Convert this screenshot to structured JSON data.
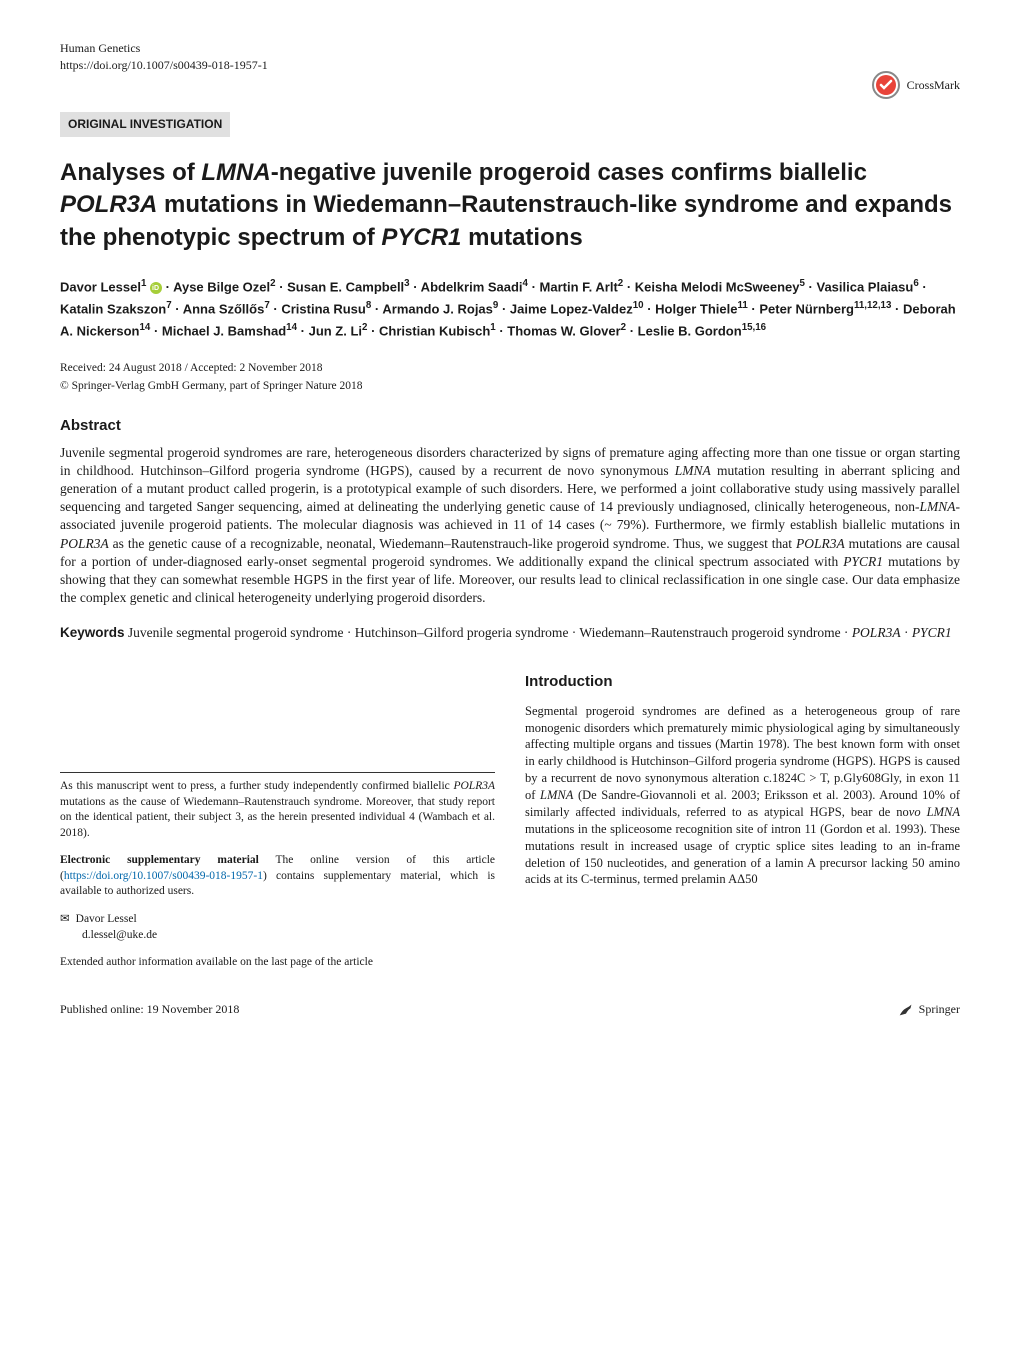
{
  "journal": "Human Genetics",
  "doi_line": "https://doi.org/10.1007/s00439-018-1957-1",
  "category": "ORIGINAL INVESTIGATION",
  "crossmark_text": "CrossMark",
  "title": "Analyses of LMNA-negative juvenile progeroid cases confirms biallelic POLR3A mutations in Wiedemann–Rautenstrauch-like syndrome and expands the phenotypic spectrum of PYCR1 mutations",
  "authors_html": "Davor Lessel<sup>1</sup> <span class='orcid-icon' data-name='orcid-icon' data-interactable='false'></span> · Ayse Bilge Ozel<sup>2</sup> · Susan E. Campbell<sup>3</sup> · Abdelkrim Saadi<sup>4</sup> · Martin F. Arlt<sup>2</sup> · Keisha Melodi McSweeney<sup>5</sup> · Vasilica Plaiasu<sup>6</sup> · Katalin Szakszon<sup>7</sup> · Anna Szőllős<sup>7</sup> · Cristina Rusu<sup>8</sup> · Armando J. Rojas<sup>9</sup> · Jaime Lopez-Valdez<sup>10</sup> · Holger Thiele<sup>11</sup> · Peter Nürnberg<sup>11,12,13</sup> · Deborah A. Nickerson<sup>14</sup> · Michael J. Bamshad<sup>14</sup> · Jun Z. Li<sup>2</sup> · Christian Kubisch<sup>1</sup> · Thomas W. Glover<sup>2</sup> · Leslie B. Gordon<sup>15,16</sup>",
  "dates": "Received: 24 August 2018 / Accepted: 2 November 2018",
  "copyright": "© Springer-Verlag GmbH Germany, part of Springer Nature 2018",
  "abstract_heading": "Abstract",
  "abstract_text": "Juvenile segmental progeroid syndromes are rare, heterogeneous disorders characterized by signs of premature aging affecting more than one tissue or organ starting in childhood. Hutchinson–Gilford progeria syndrome (HGPS), caused by a recurrent de novo synonymous LMNA mutation resulting in aberrant splicing and generation of a mutant product called progerin, is a prototypical example of such disorders. Here, we performed a joint collaborative study using massively parallel sequencing and targeted Sanger sequencing, aimed at delineating the underlying genetic cause of 14 previously undiagnosed, clinically heterogeneous, non-LMNA-associated juvenile progeroid patients. The molecular diagnosis was achieved in 11 of 14 cases (~ 79%). Furthermore, we firmly establish biallelic mutations in POLR3A as the genetic cause of a recognizable, neonatal, Wiedemann–Rautenstrauch-like progeroid syndrome. Thus, we suggest that POLR3A mutations are causal for a portion of under-diagnosed early-onset segmental progeroid syndromes. We additionally expand the clinical spectrum associated with PYCR1 mutations by showing that they can somewhat resemble HGPS in the first year of life. Moreover, our results lead to clinical reclassification in one single case. Our data emphasize the complex genetic and clinical heterogeneity underlying progeroid disorders.",
  "keywords_label": "Keywords",
  "keywords_text": " Juvenile segmental progeroid syndrome · Hutchinson–Gilford progeria syndrome · Wiedemann–Rautenstrauch progeroid syndrome · POLR3A · PYCR1",
  "intro_heading": "Introduction",
  "intro_text": "Segmental progeroid syndromes are defined as a heterogeneous group of rare monogenic disorders which prematurely mimic physiological aging by simultaneously affecting multiple organs and tissues (Martin 1978). The best known form with onset in early childhood is Hutchinson–Gilford progeria syndrome (HGPS). HGPS is caused by a recurrent de novo synonymous alteration c.1824C > T, p.Gly608Gly, in exon 11 of LMNA (De Sandre-Giovannoli et al. 2003; Eriksson et al. 2003). Around 10% of similarly affected individuals, referred to as atypical HGPS, bear de novo LMNA mutations in the spliceosome recognition site of intron 11 (Gordon et al. 1993). These mutations result in increased usage of cryptic splice sites leading to an in-frame deletion of 150 nucleotides, and generation of a lamin A precursor lacking 50 amino acids at its C-terminus, termed prelamin AΔ50",
  "press_note": "As this manuscript went to press, a further study independently confirmed biallelic POLR3A mutations as the cause of Wiedemann–Rautenstrauch syndrome. Moreover, that study report on the identical patient, their subject 3, as the herein presented individual 4 (Wambach et al. 2018).",
  "esm_label": "Electronic supplementary material",
  "esm_text": " The online version of this article (",
  "esm_link": "https://doi.org/10.1007/s00439-018-1957-1",
  "esm_text2": ") contains supplementary material, which is available to authorized users.",
  "corr_name": "Davor Lessel",
  "corr_email": "d.lessel@uke.de",
  "extended": "Extended author information available on the last page of the article",
  "pub_online": "Published online: 19 November 2018",
  "springer": "Springer"
}
